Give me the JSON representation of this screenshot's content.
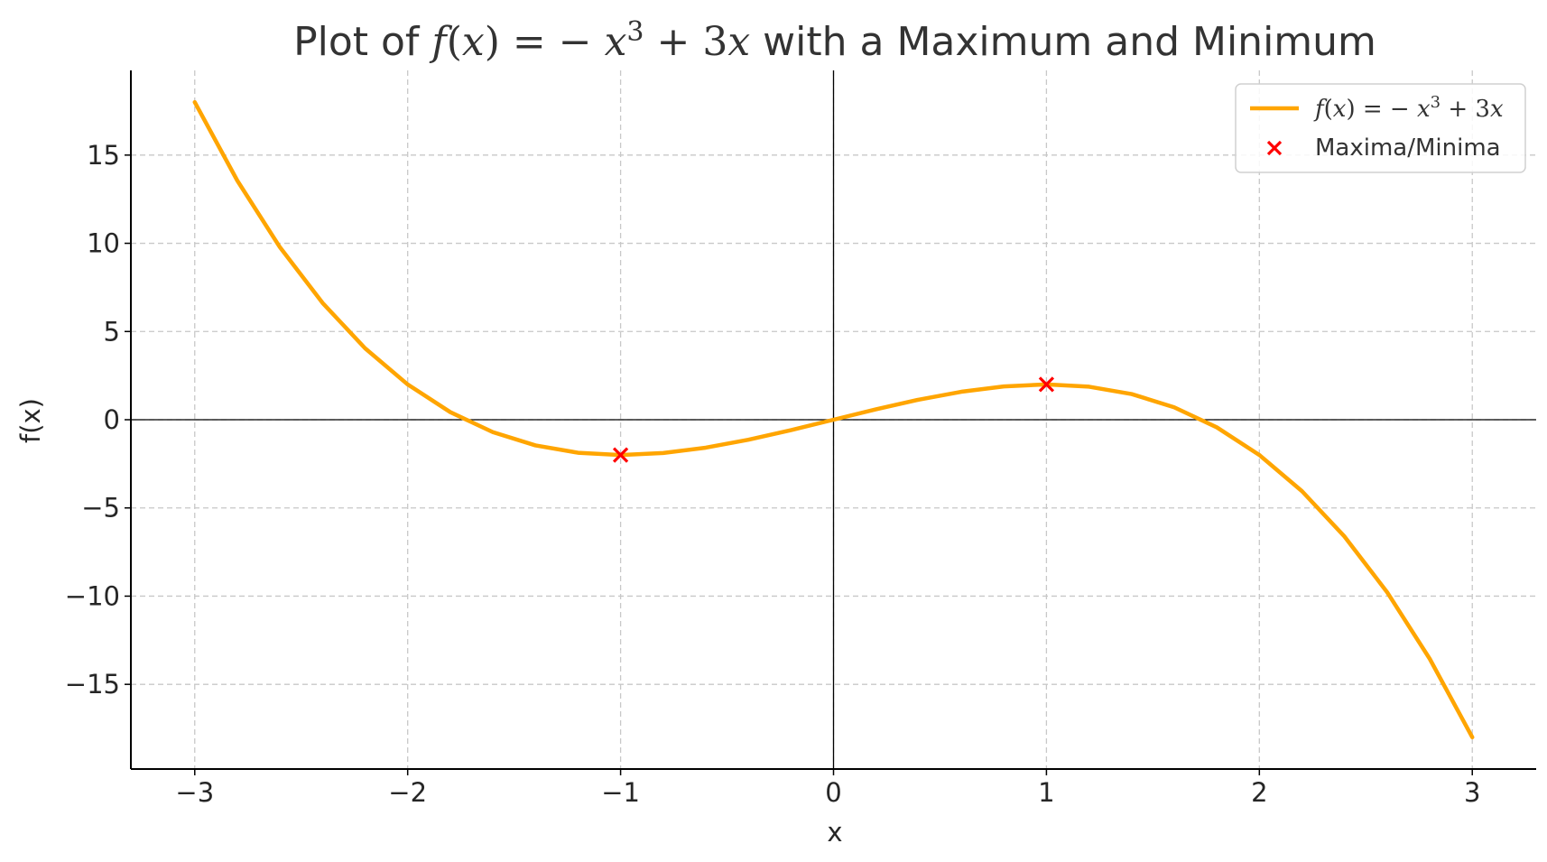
{
  "chart_data": {
    "type": "line",
    "title": {
      "prefix": "Plot of ",
      "f": "f",
      "lparen": "(",
      "x": "x",
      "rparen": ")",
      "equals_minus": " = − ",
      "x2": "x",
      "power": "3",
      "plus_three": " + 3",
      "x3": "x",
      "suffix": " with a Maximum and Minimum"
    },
    "xlabel": "x",
    "ylabel": "f(x)",
    "xlim": [
      -3.3,
      3.3
    ],
    "ylim": [
      -19.8,
      19.8
    ],
    "x_ticks": [
      {
        "value": -3,
        "label": "−3"
      },
      {
        "value": -2,
        "label": "−2"
      },
      {
        "value": -1,
        "label": "−1"
      },
      {
        "value": 0,
        "label": "0"
      },
      {
        "value": 1,
        "label": "1"
      },
      {
        "value": 2,
        "label": "2"
      },
      {
        "value": 3,
        "label": "3"
      }
    ],
    "y_ticks": [
      {
        "value": -15,
        "label": "−15"
      },
      {
        "value": -10,
        "label": "−10"
      },
      {
        "value": -5,
        "label": "−5"
      },
      {
        "value": 0,
        "label": "0"
      },
      {
        "value": 5,
        "label": "5"
      },
      {
        "value": 10,
        "label": "10"
      },
      {
        "value": 15,
        "label": "15"
      }
    ],
    "grid": true,
    "reference_lines": {
      "x0": true,
      "y0": true
    },
    "series": [
      {
        "name": "f(x) = −x³ + 3x",
        "kind": "line",
        "color": "#FFA500",
        "x": [
          -3.0,
          -2.8,
          -2.6,
          -2.4,
          -2.2,
          -2.0,
          -1.8,
          -1.6,
          -1.4,
          -1.2,
          -1.0,
          -0.8,
          -0.6,
          -0.4,
          -0.2,
          0.0,
          0.2,
          0.4,
          0.6,
          0.8,
          1.0,
          1.2,
          1.4,
          1.6,
          1.8,
          2.0,
          2.2,
          2.4,
          2.6,
          2.8,
          3.0
        ],
        "y": [
          18.0,
          13.552,
          9.776,
          6.624,
          4.048,
          2.0,
          0.432,
          -0.704,
          -1.456,
          -1.872,
          -2.0,
          -1.888,
          -1.584,
          -1.136,
          -0.592,
          0.0,
          0.592,
          1.136,
          1.584,
          1.888,
          2.0,
          1.872,
          1.456,
          0.704,
          -0.432,
          -2.0,
          -4.048,
          -6.624,
          -9.776,
          -13.552,
          -18.0
        ]
      },
      {
        "name": "Maxima/Minima",
        "kind": "scatter",
        "marker": "x",
        "color": "#FF0000",
        "points": [
          {
            "x": -1,
            "y": -2
          },
          {
            "x": 1,
            "y": 2
          }
        ]
      }
    ],
    "legend": {
      "placement": "top-right",
      "entries": [
        {
          "label": {
            "f": "f",
            "lparen": "(",
            "x": "x",
            "rparen": ")",
            "equals_minus": " = − ",
            "x2": "x",
            "power": "3",
            "plus_three": " + 3",
            "x3": "x"
          }
        },
        {
          "label": "Maxima/Minima"
        }
      ]
    }
  }
}
